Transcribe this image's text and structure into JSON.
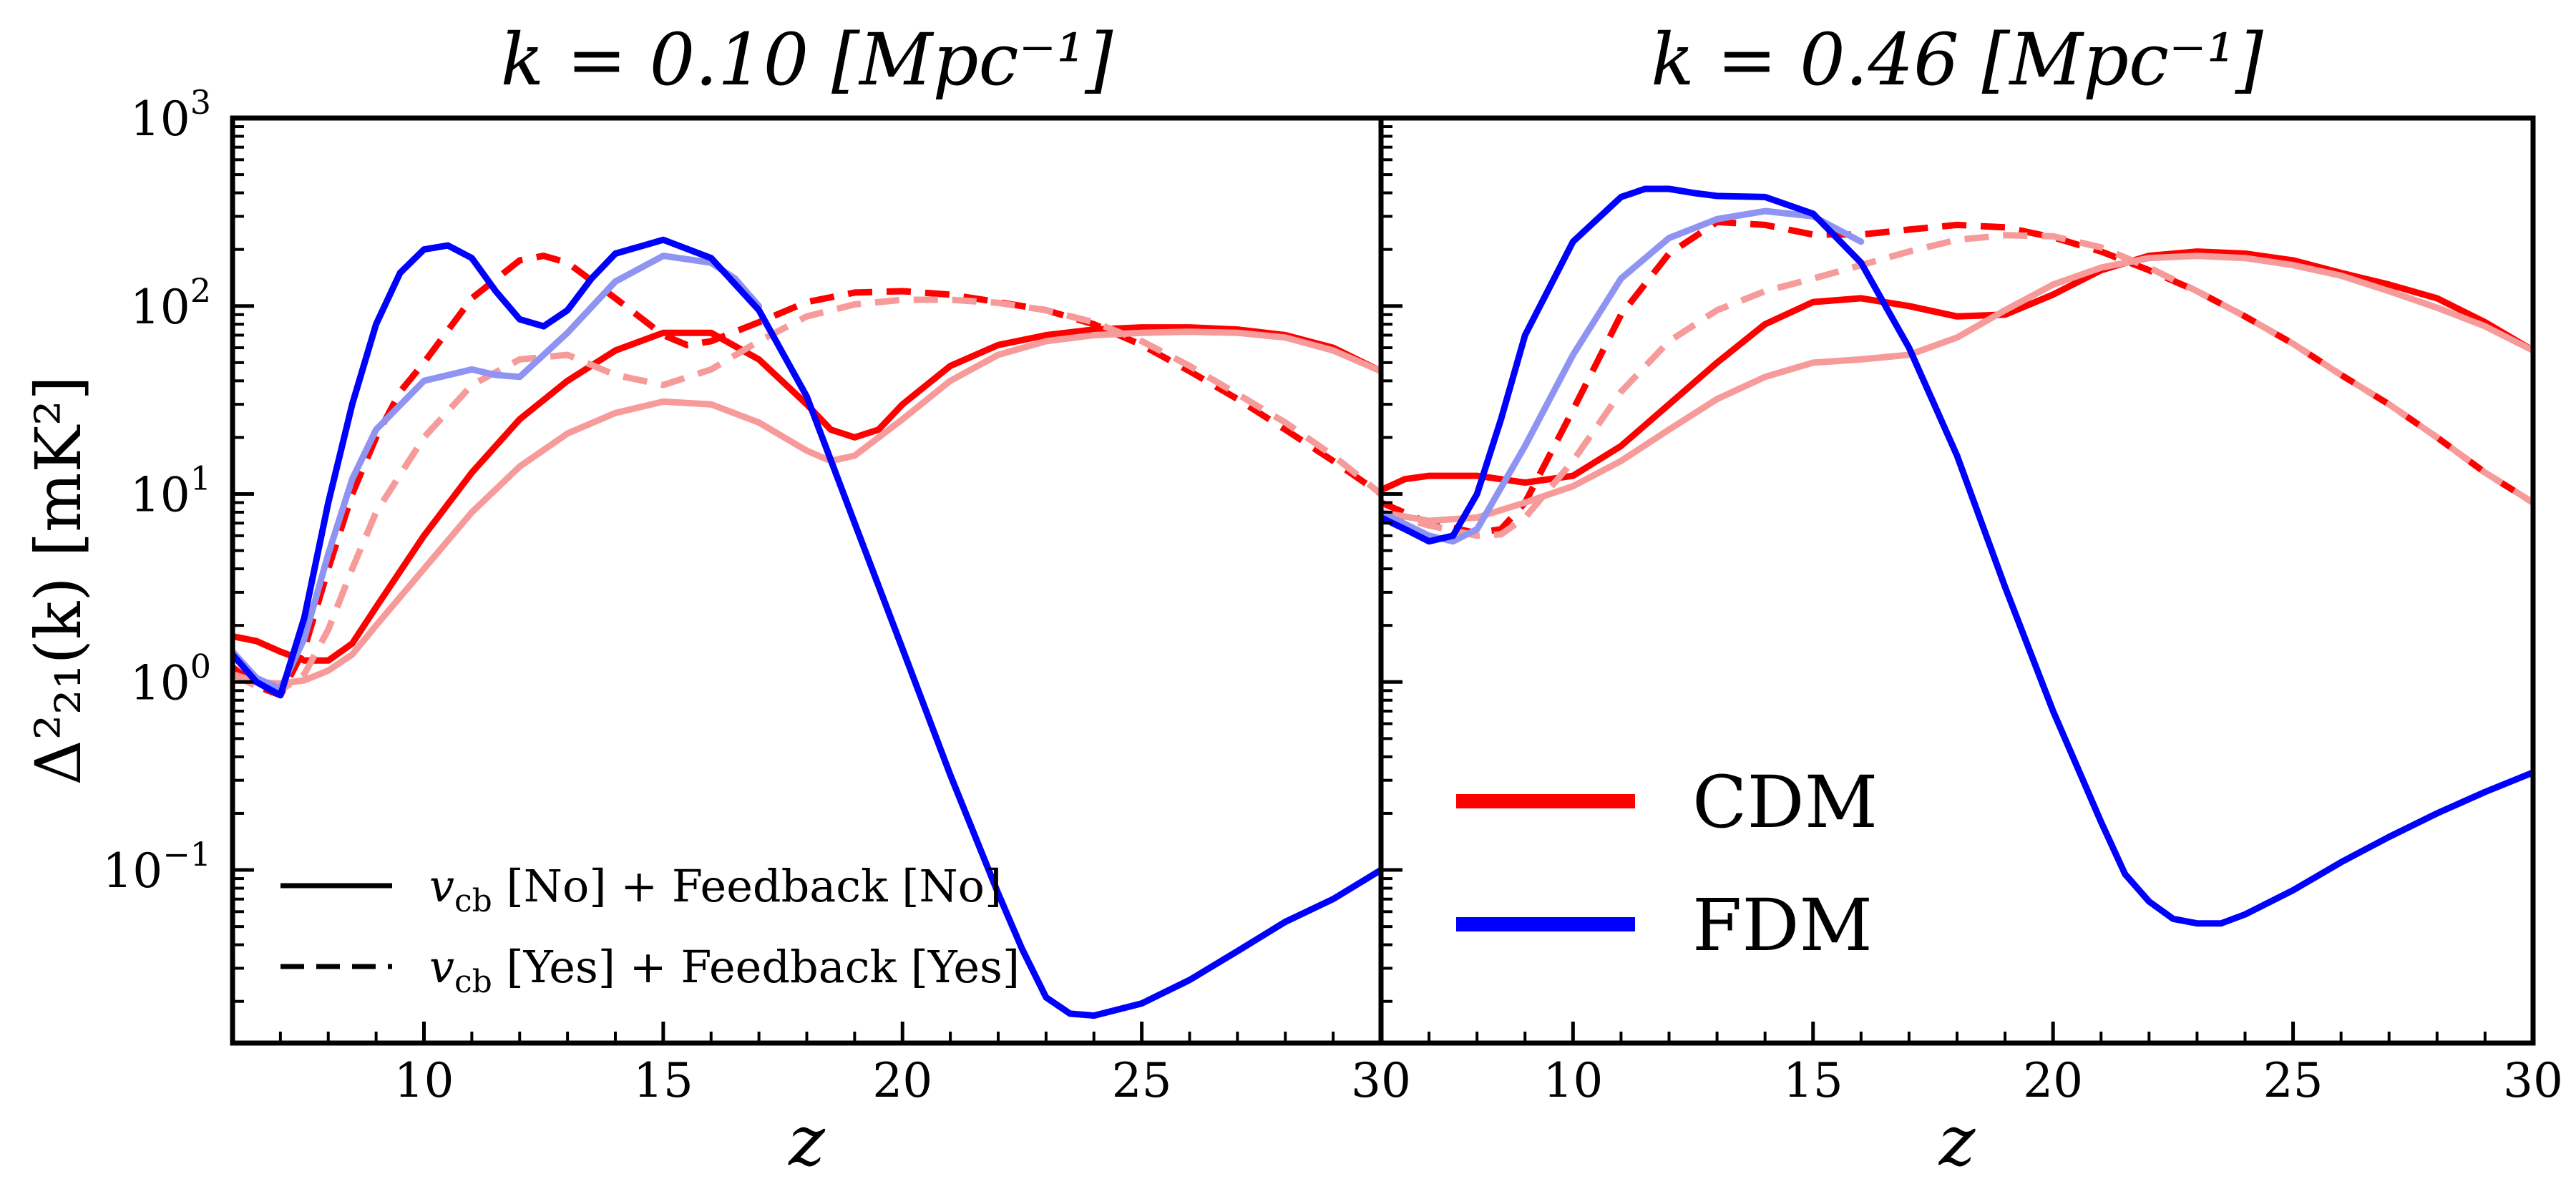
{
  "colors": {
    "cdm": "#ff0000",
    "cdm_faint": "#f79a9a",
    "fdm": "#0000ff",
    "fdm_faint": "#8f93f2",
    "axis": "#000000"
  },
  "chart_data": [
    {
      "type": "line",
      "title": "k = 0.10 [Mpc⁻¹]",
      "xlabel": "z",
      "ylabel": "Δ²₂₁(k) [mK²]",
      "xlim": [
        6,
        30
      ],
      "ylim": [
        0.012,
        1000
      ],
      "yscale": "log",
      "xticks": [
        10,
        15,
        20,
        25,
        30
      ],
      "yticks": [
        {
          "value": 1000,
          "base": "10",
          "exp": "3"
        },
        {
          "value": 100,
          "base": "10",
          "exp": "2"
        },
        {
          "value": 10,
          "base": "10",
          "exp": "1"
        },
        {
          "value": 1,
          "base": "10",
          "exp": "0"
        },
        {
          "value": 0.1,
          "base": "10",
          "exp": "−1"
        }
      ],
      "grid": false,
      "legend": {
        "placement": "bottom-left",
        "entries": [
          {
            "style": "solid",
            "prefix": "v",
            "sub": "cb",
            "text": " [No]  +  Feedback [No]"
          },
          {
            "style": "dashed",
            "prefix": "v",
            "sub": "cb",
            "text": " [Yes]  +  Feedback [Yes]"
          }
        ]
      },
      "series": [
        {
          "model": "CDM",
          "variant": "no-vcb-no-feedback",
          "style": "solid",
          "faint": false,
          "x": [
            6,
            6.5,
            7,
            7.5,
            8,
            8.5,
            9,
            10,
            11,
            12,
            13,
            14,
            15,
            16,
            17,
            18,
            18.5,
            19,
            19.5,
            20,
            21,
            22,
            23,
            24,
            25,
            26,
            27,
            28,
            29,
            30
          ],
          "y": [
            1.75,
            1.65,
            1.45,
            1.3,
            1.3,
            1.6,
            2.5,
            6,
            13,
            25,
            40,
            58,
            72,
            72,
            52,
            30,
            22,
            20,
            22,
            30,
            48,
            62,
            70,
            75,
            77,
            77,
            75,
            70,
            60,
            45
          ]
        },
        {
          "model": "CDM",
          "variant": "vcb-and-feedback",
          "style": "dashed",
          "faint": false,
          "x": [
            6,
            6.5,
            7,
            7.5,
            8,
            8.5,
            9,
            9.5,
            10,
            11,
            12,
            12.5,
            13,
            14,
            15,
            15.5,
            16,
            17,
            18,
            19,
            20,
            21,
            22,
            23,
            24,
            25,
            26,
            27,
            28,
            29,
            30
          ],
          "y": [
            1.2,
            0.95,
            0.85,
            1.5,
            4,
            10,
            20,
            35,
            50,
            110,
            175,
            185,
            170,
            110,
            70,
            62,
            65,
            82,
            105,
            118,
            120,
            115,
            105,
            95,
            80,
            62,
            45,
            32,
            22,
            15,
            10
          ]
        },
        {
          "model": "CDM",
          "variant": "vcb-and-feedback-faint",
          "style": "dashed",
          "faint": true,
          "x": [
            6,
            6.5,
            7,
            7.5,
            8,
            8.5,
            9,
            10,
            11,
            12,
            13,
            14,
            15,
            16,
            17,
            18,
            19,
            20,
            21,
            22,
            23,
            24,
            25,
            26,
            27,
            28,
            29,
            30
          ],
          "y": [
            1.1,
            0.95,
            0.9,
            1.1,
            1.9,
            4,
            8,
            20,
            38,
            52,
            55,
            43,
            38,
            46,
            65,
            88,
            102,
            108,
            108,
            104,
            95,
            82,
            65,
            48,
            34,
            24,
            16,
            10
          ]
        },
        {
          "model": "CDM",
          "variant": "no-vcb-no-feedback-faint",
          "style": "solid",
          "faint": true,
          "x": [
            6,
            6.5,
            7,
            7.5,
            8,
            8.5,
            9,
            10,
            11,
            12,
            13,
            14,
            15,
            16,
            17,
            18,
            18.5,
            19,
            20,
            21,
            22,
            23,
            24,
            25,
            26,
            27,
            28,
            29,
            30
          ],
          "y": [
            1.1,
            1.0,
            0.98,
            1.02,
            1.15,
            1.4,
            2,
            4,
            8,
            14,
            21,
            27,
            31,
            30,
            24,
            17,
            15,
            16,
            25,
            40,
            55,
            65,
            70,
            72,
            73,
            72,
            68,
            58,
            45
          ]
        },
        {
          "model": "FDM",
          "variant": "no-vcb-no-feedback-faint",
          "style": "solid",
          "faint": true,
          "x": [
            6,
            6.5,
            7,
            7.5,
            8,
            8.5,
            9,
            10,
            11,
            11.5,
            12,
            13,
            14,
            15,
            16,
            16.5,
            17
          ],
          "y": [
            1.45,
            1.05,
            0.92,
            1.7,
            4.8,
            12,
            22,
            40,
            46,
            43,
            42,
            72,
            135,
            185,
            170,
            140,
            100
          ]
        },
        {
          "model": "FDM",
          "variant": "no-vcb-no-feedback",
          "style": "solid",
          "faint": false,
          "x": [
            6,
            6.5,
            7,
            7.5,
            8,
            8.5,
            9,
            9.5,
            10,
            10.5,
            11,
            11.5,
            12,
            12.5,
            13,
            13.5,
            14,
            15,
            16,
            17,
            18,
            19,
            20,
            21,
            22,
            22.5,
            23,
            23.5,
            24,
            25,
            26,
            27,
            28,
            29,
            30
          ],
          "y": [
            1.4,
            1.0,
            0.85,
            2.2,
            9,
            30,
            80,
            150,
            200,
            210,
            180,
            120,
            85,
            78,
            95,
            140,
            190,
            225,
            180,
            95,
            33,
            7,
            1.5,
            0.32,
            0.075,
            0.038,
            0.021,
            0.0172,
            0.0168,
            0.0195,
            0.026,
            0.037,
            0.053,
            0.07,
            0.1
          ]
        }
      ]
    },
    {
      "type": "line",
      "title": "k = 0.46 [Mpc⁻¹]",
      "xlabel": "z",
      "xlim": [
        6,
        30
      ],
      "ylim": [
        0.012,
        1000
      ],
      "yscale": "log",
      "xticks": [
        10,
        15,
        20,
        25,
        30
      ],
      "grid": false,
      "legend": {
        "placement": "bottom-left",
        "entries": [
          {
            "style": "solid",
            "model": "CDM",
            "text": "CDM"
          },
          {
            "style": "solid",
            "model": "FDM",
            "text": "FDM"
          }
        ]
      },
      "series": [
        {
          "model": "CDM",
          "variant": "no-vcb-no-feedback",
          "style": "solid",
          "faint": false,
          "x": [
            6,
            6.5,
            7,
            8,
            9,
            10,
            11,
            12,
            13,
            14,
            15,
            16,
            17,
            18,
            19,
            20,
            21,
            22,
            23,
            24,
            25,
            26,
            27,
            28,
            29,
            30
          ],
          "y": [
            10.5,
            12,
            12.5,
            12.5,
            11.5,
            12.5,
            18,
            30,
            50,
            80,
            105,
            110,
            100,
            88,
            90,
            115,
            155,
            185,
            195,
            190,
            175,
            150,
            130,
            110,
            82,
            58
          ]
        },
        {
          "model": "CDM",
          "variant": "vcb-and-feedback",
          "style": "dashed",
          "faint": false,
          "x": [
            6,
            7,
            8,
            8.5,
            9,
            10,
            11,
            12,
            13,
            14,
            15,
            16,
            17,
            18,
            19,
            20,
            21,
            22,
            23,
            24,
            25,
            26,
            27,
            28,
            29,
            30
          ],
          "y": [
            9,
            7,
            6.2,
            6.5,
            9,
            28,
            90,
            190,
            280,
            270,
            240,
            240,
            255,
            270,
            262,
            232,
            195,
            155,
            120,
            88,
            63,
            43,
            30,
            20,
            13,
            9
          ]
        },
        {
          "model": "CDM",
          "variant": "vcb-and-feedback-faint",
          "style": "dashed",
          "faint": true,
          "x": [
            6,
            7,
            8,
            8.5,
            9,
            10,
            11,
            12,
            13,
            14,
            15,
            16,
            17,
            18,
            19,
            20,
            21,
            22,
            23,
            24,
            25,
            26,
            27,
            28,
            29,
            30
          ],
          "y": [
            8,
            6.8,
            6.0,
            6.1,
            7.5,
            15,
            35,
            65,
            95,
            120,
            140,
            165,
            195,
            225,
            238,
            235,
            205,
            160,
            120,
            88,
            63,
            43,
            30,
            20,
            13,
            9
          ]
        },
        {
          "model": "CDM",
          "variant": "no-vcb-no-feedback-faint",
          "style": "solid",
          "faint": true,
          "x": [
            6,
            7,
            8,
            9,
            10,
            11,
            12,
            13,
            14,
            15,
            16,
            17,
            18,
            19,
            20,
            21,
            22,
            23,
            24,
            25,
            26,
            27,
            28,
            29,
            30
          ],
          "y": [
            8,
            7.2,
            7.5,
            9,
            11,
            15,
            22,
            32,
            42,
            50,
            52,
            55,
            68,
            95,
            130,
            160,
            180,
            185,
            180,
            165,
            145,
            120,
            98,
            78,
            58
          ]
        },
        {
          "model": "FDM",
          "variant": "no-vcb-no-feedback-faint",
          "style": "solid",
          "faint": true,
          "x": [
            6,
            7,
            7.5,
            8,
            9,
            10,
            11,
            12,
            13,
            14,
            15,
            16
          ],
          "y": [
            8,
            6,
            5.6,
            6.5,
            18,
            55,
            140,
            230,
            290,
            320,
            300,
            220
          ]
        },
        {
          "model": "FDM",
          "variant": "no-vcb-no-feedback",
          "style": "solid",
          "faint": false,
          "x": [
            6,
            6.5,
            7,
            7.5,
            8,
            8.5,
            9,
            10,
            11,
            11.5,
            12,
            12.5,
            13,
            14,
            15,
            16,
            17,
            18,
            19,
            20,
            21,
            21.5,
            22,
            22.5,
            23,
            23.5,
            24,
            25,
            26,
            27,
            28,
            29,
            30
          ],
          "y": [
            7.5,
            6.5,
            5.6,
            6,
            10,
            25,
            70,
            220,
            380,
            420,
            420,
            400,
            385,
            380,
            310,
            170,
            60,
            16,
            3.2,
            0.7,
            0.18,
            0.095,
            0.068,
            0.055,
            0.052,
            0.052,
            0.058,
            0.078,
            0.11,
            0.15,
            0.2,
            0.26,
            0.33
          ]
        }
      ]
    }
  ]
}
